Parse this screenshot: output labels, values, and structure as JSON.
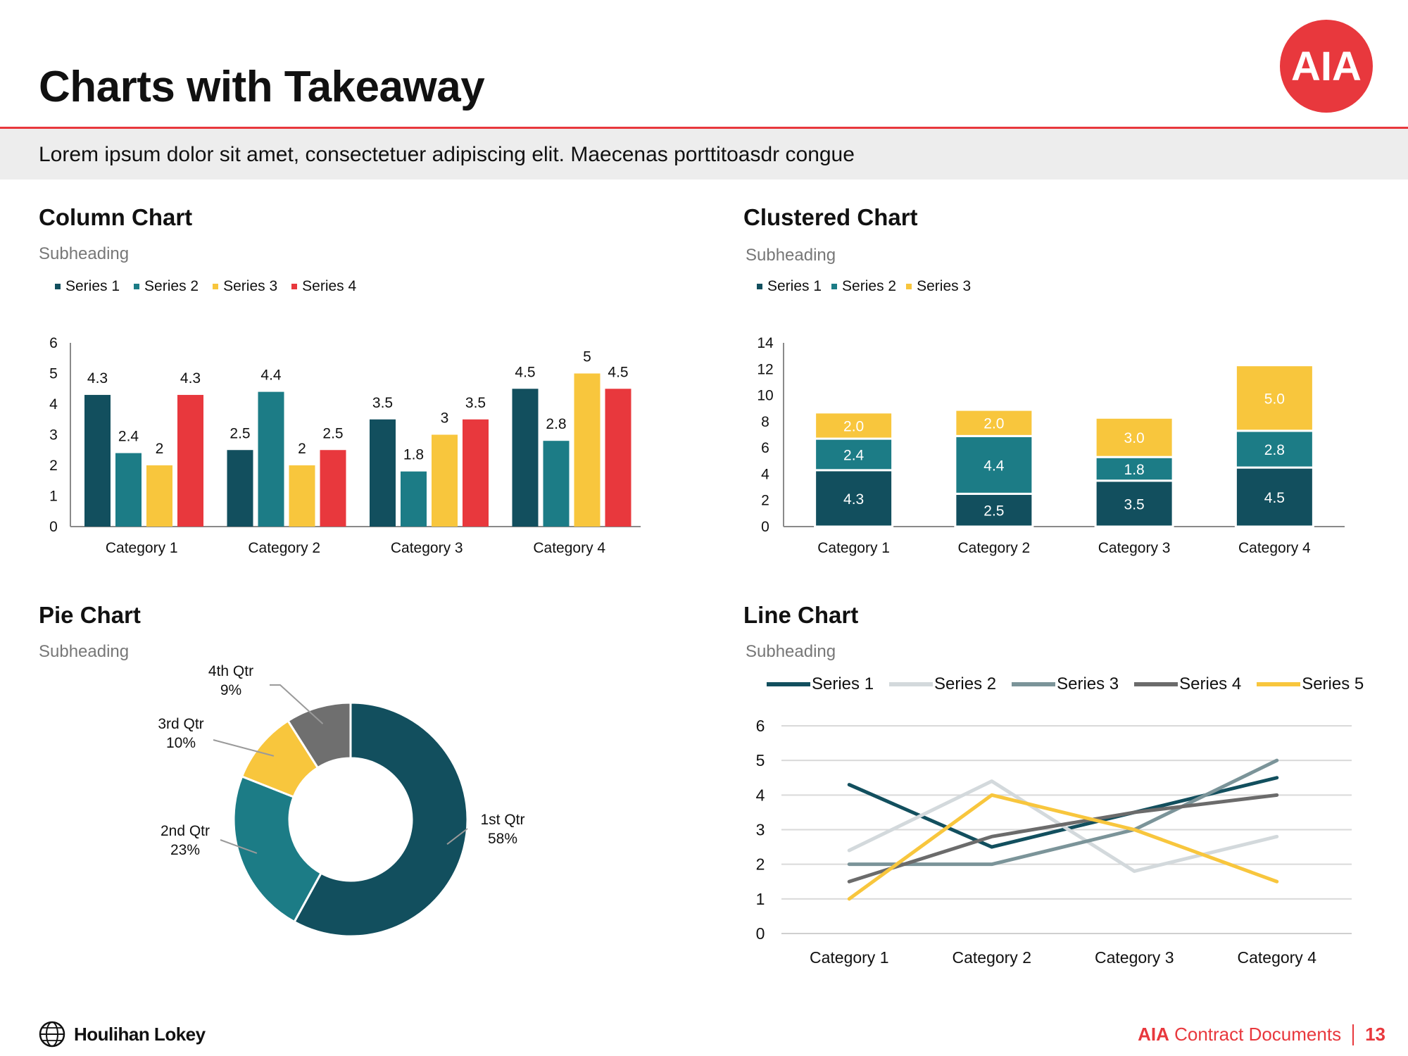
{
  "header": {
    "title": "Charts with Takeaway",
    "logo_text": "AIA"
  },
  "takeaway": "Lorem ipsum dolor sit amet, consectetuer adipiscing elit. Maecenas porttitoasdr congue",
  "sections": {
    "column": {
      "title": "Column Chart",
      "subheading": "Subheading"
    },
    "clustered": {
      "title": "Clustered Chart",
      "subheading": "Subheading"
    },
    "pie": {
      "title": "Pie Chart",
      "subheading": "Subheading"
    },
    "line": {
      "title": "Line Chart",
      "subheading": "Subheading"
    }
  },
  "footer": {
    "brand": "Houlihan Lokey",
    "doc_bold": "AIA",
    "doc_rest": " Contract Documents",
    "page": "13"
  },
  "chart_data": [
    {
      "type": "bar",
      "categories": [
        "Category 1",
        "Category 2",
        "Category 3",
        "Category 4"
      ],
      "series": [
        {
          "name": "Series 1",
          "values": [
            4.3,
            2.5,
            3.5,
            4.5
          ],
          "color": "#124f5e"
        },
        {
          "name": "Series 2",
          "values": [
            2.4,
            4.4,
            1.8,
            2.8
          ],
          "color": "#1c7c86"
        },
        {
          "name": "Series 3",
          "values": [
            2,
            2,
            3,
            5
          ],
          "color": "#f8c63d"
        },
        {
          "name": "Series 4",
          "values": [
            4.3,
            2.5,
            3.5,
            4.5
          ],
          "color": "#e8383d"
        }
      ],
      "ylim": [
        0,
        6
      ],
      "yticks": [
        0,
        1,
        2,
        3,
        4,
        5,
        6
      ],
      "legend": "top-left"
    },
    {
      "type": "bar",
      "stacked": true,
      "categories": [
        "Category 1",
        "Category 2",
        "Category 3",
        "Category 4"
      ],
      "series": [
        {
          "name": "Series 1",
          "values": [
            4.3,
            2.5,
            3.5,
            4.5
          ],
          "labels": [
            "4.3",
            "2.5",
            "3.5",
            "4.5"
          ],
          "color": "#124f5e"
        },
        {
          "name": "Series 2",
          "values": [
            2.4,
            4.4,
            1.8,
            2.8
          ],
          "labels": [
            "2.4",
            "4.4",
            "1.8",
            "2.8"
          ],
          "color": "#1c7c86"
        },
        {
          "name": "Series 3",
          "values": [
            2.0,
            2.0,
            3.0,
            5.0
          ],
          "labels": [
            "2.0",
            "2.0",
            "3.0",
            "5.0"
          ],
          "color": "#f8c63d"
        }
      ],
      "ylim": [
        0,
        14
      ],
      "yticks": [
        0,
        2,
        4,
        6,
        8,
        10,
        12,
        14
      ],
      "legend": "top-left"
    },
    {
      "type": "pie",
      "donut": true,
      "slices": [
        {
          "name": "1st Qtr",
          "label": "58%",
          "value": 58,
          "color": "#124f5e"
        },
        {
          "name": "2nd Qtr",
          "label": "23%",
          "value": 23,
          "color": "#1c7c86"
        },
        {
          "name": "3rd Qtr",
          "label": "10%",
          "value": 10,
          "color": "#f8c63d"
        },
        {
          "name": "4th Qtr",
          "label": "9%",
          "value": 9,
          "color": "#6f6f6f"
        }
      ]
    },
    {
      "type": "line",
      "categories": [
        "Category 1",
        "Category 2",
        "Category 3",
        "Category 4"
      ],
      "series": [
        {
          "name": "Series 1",
          "values": [
            4.3,
            2.5,
            3.5,
            4.5
          ],
          "color": "#124f5e"
        },
        {
          "name": "Series 2",
          "values": [
            2.4,
            4.4,
            1.8,
            2.8
          ],
          "color": "#d3d9dc"
        },
        {
          "name": "Series 3",
          "values": [
            2,
            2,
            3,
            5
          ],
          "color": "#7b9499"
        },
        {
          "name": "Series 4",
          "values": [
            1.5,
            2.8,
            3.5,
            4
          ],
          "color": "#6b6b6b"
        },
        {
          "name": "Series 5",
          "values": [
            1,
            4,
            3,
            1.5
          ],
          "color": "#f8c63d"
        }
      ],
      "ylim": [
        0,
        6
      ],
      "yticks": [
        0,
        1,
        2,
        3,
        4,
        5,
        6
      ],
      "grid": true,
      "legend": "top"
    }
  ]
}
